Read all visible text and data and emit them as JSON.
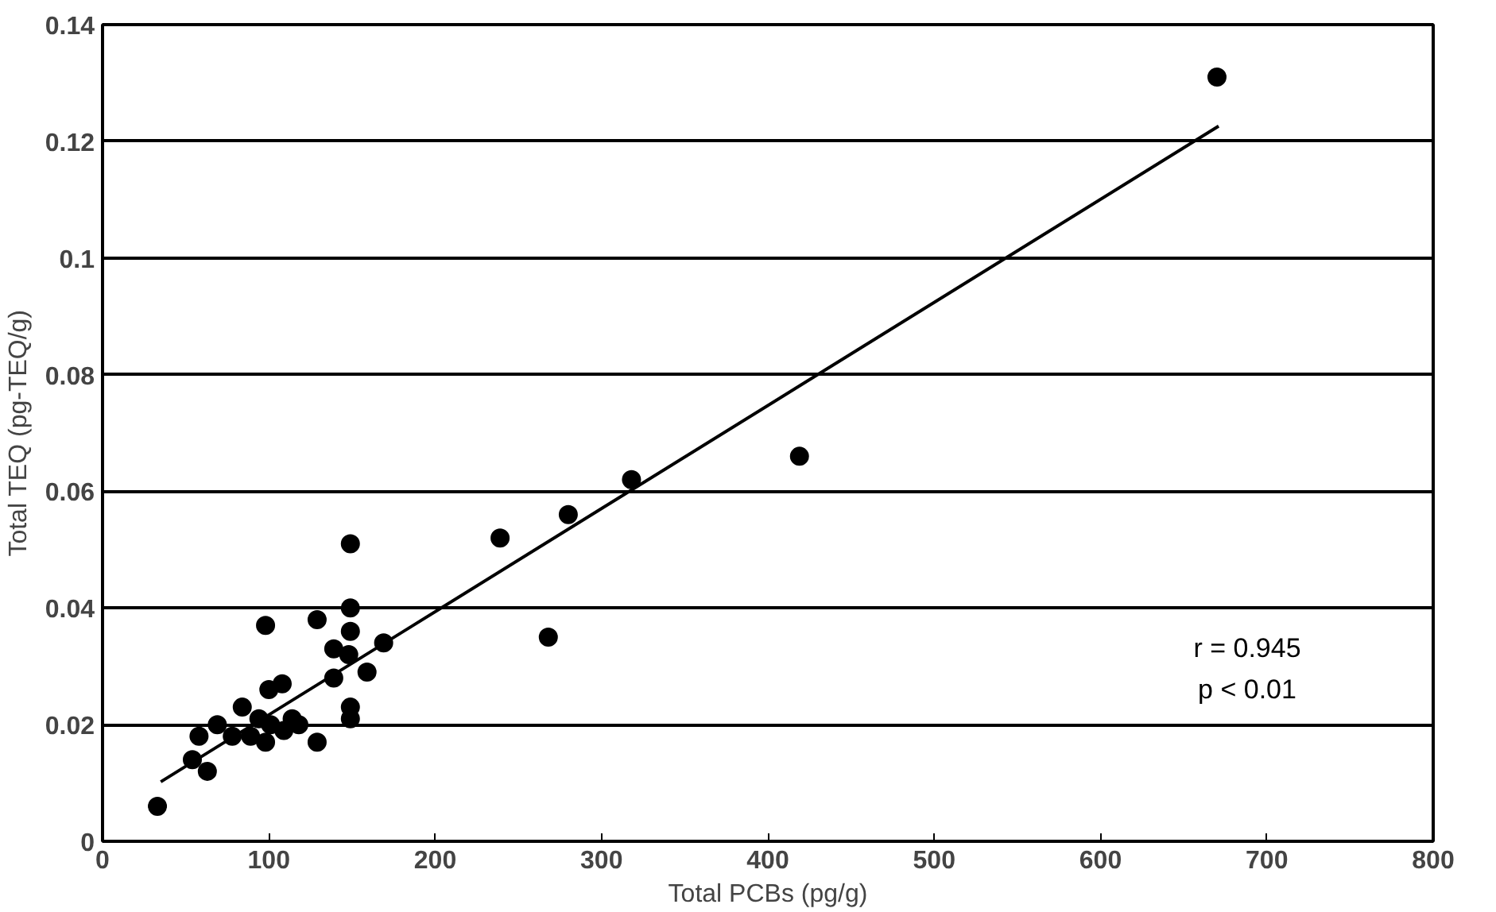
{
  "chart_data": {
    "type": "scatter",
    "xlabel": "Total PCBs (pg/g)",
    "ylabel": "Total TEQ (pg-TEQ/g)",
    "xlim": [
      0,
      800
    ],
    "xticks": [
      0,
      100,
      200,
      300,
      400,
      500,
      600,
      700,
      800
    ],
    "ylim": [
      0,
      0.14
    ],
    "yticks": [
      0,
      0.02,
      0.04,
      0.06,
      0.08,
      0.1,
      0.12,
      0.14
    ],
    "grid": "y",
    "marker": "circle",
    "series": [
      {
        "color": "#000000",
        "x": [
          33,
          54,
          63,
          58,
          69,
          84,
          98,
          78,
          89,
          94,
          98,
          100,
          101,
          108,
          109,
          114,
          118,
          129,
          129,
          139,
          139,
          148,
          149,
          149,
          149,
          149,
          149,
          159,
          169,
          239,
          268,
          280,
          318,
          419,
          670
        ],
        "values": [
          0.006,
          0.014,
          0.012,
          0.018,
          0.02,
          0.023,
          0.037,
          0.018,
          0.018,
          0.021,
          0.017,
          0.026,
          0.02,
          0.027,
          0.019,
          0.021,
          0.02,
          0.017,
          0.038,
          0.033,
          0.028,
          0.032,
          0.051,
          0.04,
          0.036,
          0.023,
          0.021,
          0.029,
          0.034,
          0.052,
          0.035,
          0.056,
          0.062,
          0.066,
          0.131
        ]
      },
      {
        "type": "line",
        "color": "#000000",
        "marker": "none",
        "line_style": "solid",
        "x": [
          35,
          671
        ],
        "values": [
          0.0102,
          0.1226
        ]
      }
    ],
    "annotations": [
      "r = 0.945",
      "p < 0.01"
    ]
  }
}
